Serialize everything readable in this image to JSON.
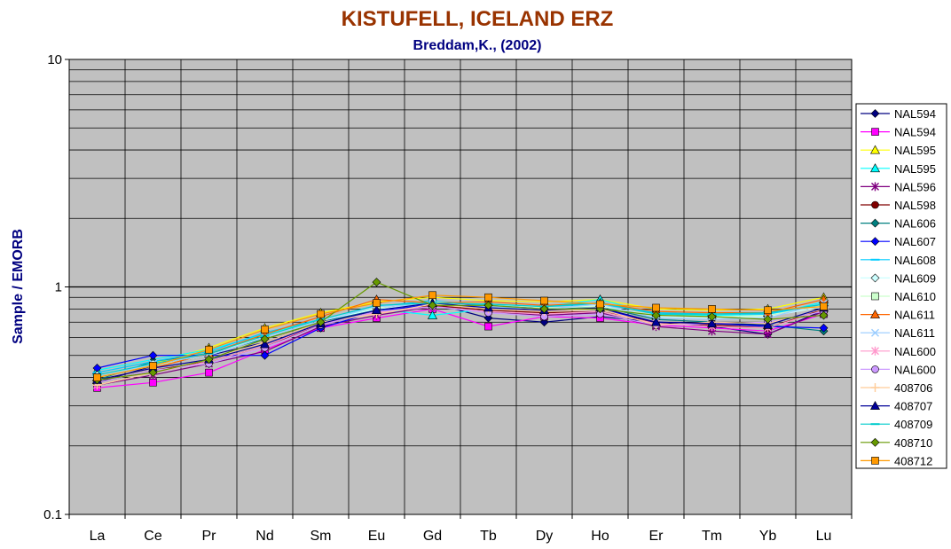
{
  "chart_data": {
    "type": "line",
    "title": "KISTUFELL, ICELAND ERZ",
    "subtitle": "Breddam,K., (2002)",
    "ylabel": "Sample / EMORB",
    "xlabel": "",
    "y_scale": "log",
    "ylim": [
      0.1,
      10
    ],
    "y_ticks": [
      "0.1",
      "1",
      "10"
    ],
    "categories": [
      "La",
      "Ce",
      "Pr",
      "Nd",
      "Sm",
      "Eu",
      "Gd",
      "Tb",
      "Dy",
      "Ho",
      "Er",
      "Tm",
      "Yb",
      "Lu"
    ],
    "grid": true,
    "legend_position": "right",
    "colors": {
      "title": "#993300",
      "subtitle": "#000080",
      "ylabel": "#000080",
      "plot_background": "#c0c0c0",
      "gridline": "#000000"
    },
    "series": [
      {
        "name": "NAL594",
        "color": "#000080",
        "marker": "diamond",
        "values": [
          0.38,
          0.45,
          0.5,
          0.57,
          0.7,
          0.8,
          0.85,
          0.73,
          0.7,
          0.74,
          0.7,
          0.67,
          0.62,
          0.79
        ]
      },
      {
        "name": "NAL594",
        "color": "#ff00ff",
        "marker": "square",
        "values": [
          0.36,
          0.38,
          0.42,
          0.53,
          0.66,
          0.73,
          0.8,
          0.67,
          0.74,
          0.73,
          0.68,
          0.66,
          0.64,
          0.76
        ]
      },
      {
        "name": "NAL595",
        "color": "#ffff00",
        "marker": "triangle",
        "values": [
          0.4,
          0.46,
          0.54,
          0.66,
          0.77,
          0.86,
          0.9,
          0.87,
          0.86,
          0.88,
          0.8,
          0.79,
          0.8,
          0.9
        ]
      },
      {
        "name": "NAL595",
        "color": "#00ffff",
        "marker": "triangle",
        "values": [
          0.43,
          0.48,
          0.53,
          0.62,
          0.72,
          0.8,
          0.75,
          0.8,
          0.82,
          0.88,
          0.76,
          0.75,
          0.75,
          0.86
        ]
      },
      {
        "name": "NAL596",
        "color": "#800080",
        "marker": "star",
        "values": [
          0.37,
          0.41,
          0.46,
          0.52,
          0.67,
          0.75,
          0.82,
          0.78,
          0.75,
          0.77,
          0.67,
          0.64,
          0.62,
          0.78
        ]
      },
      {
        "name": "NAL598",
        "color": "#800000",
        "marker": "circle",
        "values": [
          0.38,
          0.43,
          0.47,
          0.55,
          0.68,
          0.78,
          0.83,
          0.79,
          0.77,
          0.78,
          0.7,
          0.68,
          0.66,
          0.8
        ]
      },
      {
        "name": "NAL606",
        "color": "#008080",
        "marker": "diamond",
        "values": [
          0.39,
          0.47,
          0.51,
          0.59,
          0.7,
          0.79,
          0.86,
          0.82,
          0.8,
          0.82,
          0.72,
          0.7,
          0.68,
          0.64
        ]
      },
      {
        "name": "NAL607",
        "color": "#0000ff",
        "marker": "diamond",
        "values": [
          0.44,
          0.5,
          0.5,
          0.5,
          0.66,
          0.78,
          0.84,
          0.84,
          0.8,
          0.8,
          0.7,
          0.69,
          0.67,
          0.66
        ]
      },
      {
        "name": "NAL608",
        "color": "#00ccff",
        "marker": "dash",
        "values": [
          0.42,
          0.47,
          0.52,
          0.63,
          0.72,
          0.82,
          0.87,
          0.83,
          0.82,
          0.84,
          0.77,
          0.76,
          0.76,
          0.84
        ]
      },
      {
        "name": "NAL609",
        "color": "#ccffff",
        "marker": "diamond",
        "values": [
          0.41,
          0.46,
          0.5,
          0.6,
          0.71,
          0.8,
          0.85,
          0.82,
          0.8,
          0.83,
          0.74,
          0.73,
          0.74,
          0.82
        ]
      },
      {
        "name": "NAL610",
        "color": "#ccffcc",
        "marker": "square",
        "values": [
          0.4,
          0.45,
          0.5,
          0.61,
          0.72,
          0.81,
          0.86,
          0.84,
          0.81,
          0.82,
          0.75,
          0.74,
          0.75,
          0.83
        ]
      },
      {
        "name": "NAL611",
        "color": "#ff6600",
        "marker": "triangle",
        "values": [
          0.39,
          0.44,
          0.51,
          0.62,
          0.74,
          0.88,
          0.85,
          0.86,
          0.83,
          0.85,
          0.78,
          0.77,
          0.77,
          0.88
        ]
      },
      {
        "name": "NAL611",
        "color": "#99ccff",
        "marker": "x",
        "values": [
          0.4,
          0.46,
          0.5,
          0.6,
          0.71,
          0.82,
          0.84,
          0.82,
          0.8,
          0.84,
          0.73,
          0.72,
          0.73,
          0.85
        ]
      },
      {
        "name": "NAL600",
        "color": "#ff99cc",
        "marker": "star",
        "values": [
          0.37,
          0.42,
          0.47,
          0.55,
          0.69,
          0.77,
          0.82,
          0.78,
          0.76,
          0.78,
          0.69,
          0.67,
          0.66,
          0.79
        ]
      },
      {
        "name": "NAL600",
        "color": "#cc99ff",
        "marker": "circle",
        "values": [
          0.38,
          0.43,
          0.46,
          0.54,
          0.68,
          0.78,
          0.82,
          0.77,
          0.74,
          0.76,
          0.68,
          0.69,
          0.7,
          0.78
        ]
      },
      {
        "name": "408706",
        "color": "#ffcc99",
        "marker": "plus",
        "values": [
          0.37,
          0.42,
          0.48,
          0.57,
          0.7,
          0.76,
          0.84,
          0.8,
          0.78,
          0.8,
          0.68,
          0.7,
          0.69,
          0.8
        ]
      },
      {
        "name": "408707",
        "color": "#000099",
        "marker": "triangle",
        "values": [
          0.39,
          0.44,
          0.48,
          0.56,
          0.69,
          0.79,
          0.85,
          0.81,
          0.79,
          0.81,
          0.7,
          0.69,
          0.68,
          0.81
        ]
      },
      {
        "name": "408709",
        "color": "#00cccc",
        "marker": "dash",
        "values": [
          0.41,
          0.46,
          0.51,
          0.61,
          0.72,
          0.83,
          0.85,
          0.84,
          0.82,
          0.85,
          0.76,
          0.76,
          0.77,
          0.84
        ]
      },
      {
        "name": "408710",
        "color": "#669900",
        "marker": "diamond",
        "values": [
          0.39,
          0.42,
          0.48,
          0.59,
          0.7,
          1.05,
          0.83,
          0.83,
          0.8,
          0.8,
          0.75,
          0.74,
          0.72,
          0.75
        ]
      },
      {
        "name": "408712",
        "color": "#ff9900",
        "marker": "square",
        "values": [
          0.4,
          0.45,
          0.53,
          0.65,
          0.76,
          0.85,
          0.92,
          0.9,
          0.87,
          0.84,
          0.81,
          0.8,
          0.79,
          0.82
        ]
      }
    ]
  }
}
